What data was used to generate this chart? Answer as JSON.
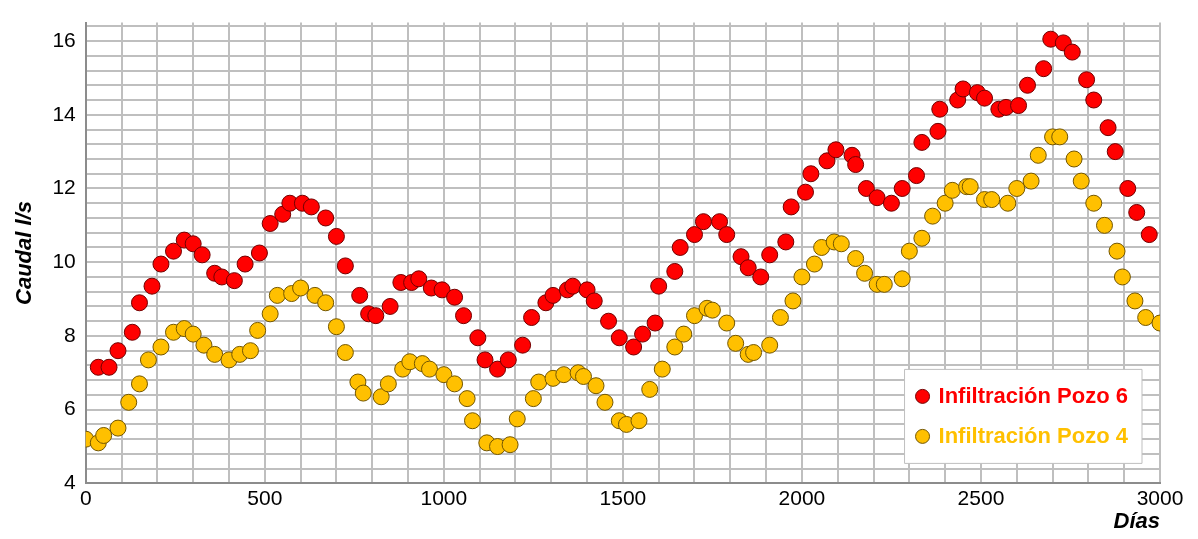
{
  "chart_data": {
    "type": "scatter",
    "xlabel": "Días",
    "ylabel": "Caudal l/s",
    "xlim": [
      0,
      3000
    ],
    "ylim": [
      4,
      16.5
    ],
    "xticks": [
      0,
      {
        "value": 100,
        "label": null
      },
      {
        "value": 200,
        "label": null
      },
      {
        "value": 300,
        "label": null
      },
      {
        "value": 400,
        "label": null
      },
      500,
      {
        "value": 600,
        "label": null
      },
      {
        "value": 700,
        "label": null
      },
      {
        "value": 800,
        "label": null
      },
      {
        "value": 900,
        "label": null
      },
      1000,
      {
        "value": 1100,
        "label": null
      },
      {
        "value": 1200,
        "label": null
      },
      {
        "value": 1300,
        "label": null
      },
      {
        "value": 1400,
        "label": null
      },
      1500,
      {
        "value": 1600,
        "label": null
      },
      {
        "value": 1700,
        "label": null
      },
      {
        "value": 1800,
        "label": null
      },
      {
        "value": 1900,
        "label": null
      },
      2000,
      {
        "value": 2100,
        "label": null
      },
      {
        "value": 2200,
        "label": null
      },
      {
        "value": 2300,
        "label": null
      },
      {
        "value": 2400,
        "label": null
      },
      2500,
      {
        "value": 2600,
        "label": null
      },
      {
        "value": 2700,
        "label": null
      },
      {
        "value": 2800,
        "label": null
      },
      {
        "value": 2900,
        "label": null
      },
      3000
    ],
    "yticks": [
      4,
      {
        "value": 4.4,
        "label": null
      },
      {
        "value": 4.8,
        "label": null
      },
      {
        "value": 5.2,
        "label": null
      },
      {
        "value": 5.6,
        "label": null
      },
      6,
      {
        "value": 6.4,
        "label": null
      },
      {
        "value": 6.8,
        "label": null
      },
      {
        "value": 7.2,
        "label": null
      },
      {
        "value": 7.6,
        "label": null
      },
      8,
      {
        "value": 8.4,
        "label": null
      },
      {
        "value": 8.8,
        "label": null
      },
      {
        "value": 9.2,
        "label": null
      },
      {
        "value": 9.6,
        "label": null
      },
      10,
      {
        "value": 10.4,
        "label": null
      },
      {
        "value": 10.8,
        "label": null
      },
      {
        "value": 11.2,
        "label": null
      },
      {
        "value": 11.6,
        "label": null
      },
      12,
      {
        "value": 12.4,
        "label": null
      },
      {
        "value": 12.8,
        "label": null
      },
      {
        "value": 13.2,
        "label": null
      },
      {
        "value": 13.6,
        "label": null
      },
      14,
      {
        "value": 14.4,
        "label": null
      },
      {
        "value": 14.8,
        "label": null
      },
      {
        "value": 15.2,
        "label": null
      },
      {
        "value": 15.6,
        "label": null
      },
      16,
      {
        "value": 16.4,
        "label": null
      }
    ],
    "grid": true,
    "legend": "bottom right",
    "marker": "circle",
    "series": [
      {
        "name": "Infiltración Pozo 6",
        "color": "#ff0000",
        "x": [
          35,
          65,
          90,
          130,
          150,
          185,
          210,
          245,
          275,
          300,
          325,
          360,
          380,
          415,
          445,
          485,
          515,
          550,
          570,
          605,
          630,
          670,
          700,
          725,
          765,
          790,
          810,
          850,
          880,
          910,
          930,
          965,
          995,
          1030,
          1055,
          1095,
          1115,
          1150,
          1180,
          1220,
          1245,
          1285,
          1305,
          1345,
          1360,
          1400,
          1420,
          1460,
          1490,
          1530,
          1555,
          1590,
          1600,
          1645,
          1660,
          1700,
          1725,
          1770,
          1790,
          1830,
          1850,
          1885,
          1910,
          1955,
          1970,
          2010,
          2025,
          2070,
          2095,
          2140,
          2150,
          2180,
          2210,
          2250,
          2280,
          2320,
          2335,
          2380,
          2385,
          2435,
          2450,
          2490,
          2510,
          2550,
          2570,
          2605,
          2630,
          2675,
          2695,
          2730,
          2755,
          2795,
          2815,
          2855,
          2875,
          2910,
          2935,
          2970
        ],
        "values": [
          7.15,
          7.15,
          7.6,
          8.1,
          8.9,
          9.35,
          9.95,
          10.3,
          10.6,
          10.5,
          10.2,
          9.7,
          9.6,
          9.5,
          9.95,
          10.25,
          11.05,
          11.3,
          11.6,
          11.6,
          11.5,
          11.2,
          10.7,
          9.9,
          9.1,
          8.6,
          8.55,
          8.8,
          9.45,
          9.45,
          9.55,
          9.3,
          9.25,
          9.05,
          8.55,
          7.95,
          7.35,
          7.1,
          7.35,
          7.75,
          8.5,
          8.9,
          9.1,
          9.25,
          9.35,
          9.25,
          8.95,
          8.4,
          7.95,
          7.7,
          8.05,
          8.35,
          9.35,
          9.75,
          10.4,
          10.75,
          11.1,
          11.1,
          10.75,
          10.15,
          9.85,
          9.6,
          10.2,
          10.55,
          11.5,
          11.9,
          12.4,
          12.75,
          13.05,
          12.9,
          12.65,
          12.0,
          11.75,
          11.6,
          12.0,
          12.35,
          13.25,
          13.55,
          14.15,
          14.4,
          14.7,
          14.6,
          14.45,
          14.15,
          14.2,
          14.25,
          14.8,
          15.25,
          16.05,
          15.95,
          15.7,
          14.95,
          14.4,
          13.65,
          13.0,
          12.0,
          11.35,
          10.75
        ]
      },
      {
        "name": "Infiltración Pozo 4",
        "color": "#ffc000",
        "x": [
          0,
          35,
          50,
          90,
          120,
          150,
          175,
          210,
          245,
          275,
          300,
          330,
          360,
          400,
          430,
          460,
          480,
          515,
          535,
          575,
          600,
          640,
          670,
          700,
          725,
          760,
          775,
          825,
          845,
          885,
          905,
          940,
          960,
          1000,
          1030,
          1065,
          1080,
          1120,
          1150,
          1185,
          1205,
          1250,
          1265,
          1305,
          1335,
          1375,
          1390,
          1425,
          1450,
          1490,
          1510,
          1545,
          1575,
          1610,
          1645,
          1670,
          1700,
          1735,
          1750,
          1790,
          1815,
          1850,
          1865,
          1910,
          1940,
          1975,
          2000,
          2035,
          2055,
          2090,
          2110,
          2150,
          2175,
          2210,
          2230,
          2280,
          2300,
          2335,
          2365,
          2400,
          2420,
          2460,
          2470,
          2510,
          2530,
          2575,
          2600,
          2640,
          2660,
          2700,
          2720,
          2760,
          2780,
          2815,
          2845,
          2880,
          2895,
          2930,
          2960,
          3000
        ],
        "values": [
          5.2,
          5.1,
          5.3,
          5.5,
          6.2,
          6.7,
          7.35,
          7.7,
          8.1,
          8.2,
          8.05,
          7.75,
          7.5,
          7.35,
          7.5,
          7.6,
          8.15,
          8.6,
          9.1,
          9.15,
          9.3,
          9.1,
          8.9,
          8.25,
          7.55,
          6.75,
          6.45,
          6.35,
          6.7,
          7.1,
          7.3,
          7.25,
          7.1,
          6.95,
          6.7,
          6.3,
          5.7,
          5.1,
          5.0,
          5.05,
          5.75,
          6.3,
          6.75,
          6.85,
          6.95,
          7.0,
          6.9,
          6.65,
          6.2,
          5.7,
          5.6,
          5.7,
          6.55,
          7.1,
          7.7,
          8.05,
          8.55,
          8.75,
          8.7,
          8.35,
          7.8,
          7.5,
          7.55,
          7.75,
          8.5,
          8.95,
          9.6,
          9.95,
          10.4,
          10.55,
          10.5,
          10.1,
          9.7,
          9.4,
          9.4,
          9.55,
          10.3,
          10.65,
          11.25,
          11.6,
          11.95,
          12.05,
          12.05,
          11.7,
          11.7,
          11.6,
          12.0,
          12.2,
          12.9,
          13.4,
          13.4,
          12.8,
          12.2,
          11.6,
          11.0,
          10.3,
          9.6,
          8.95,
          8.5,
          8.35
        ]
      }
    ]
  }
}
